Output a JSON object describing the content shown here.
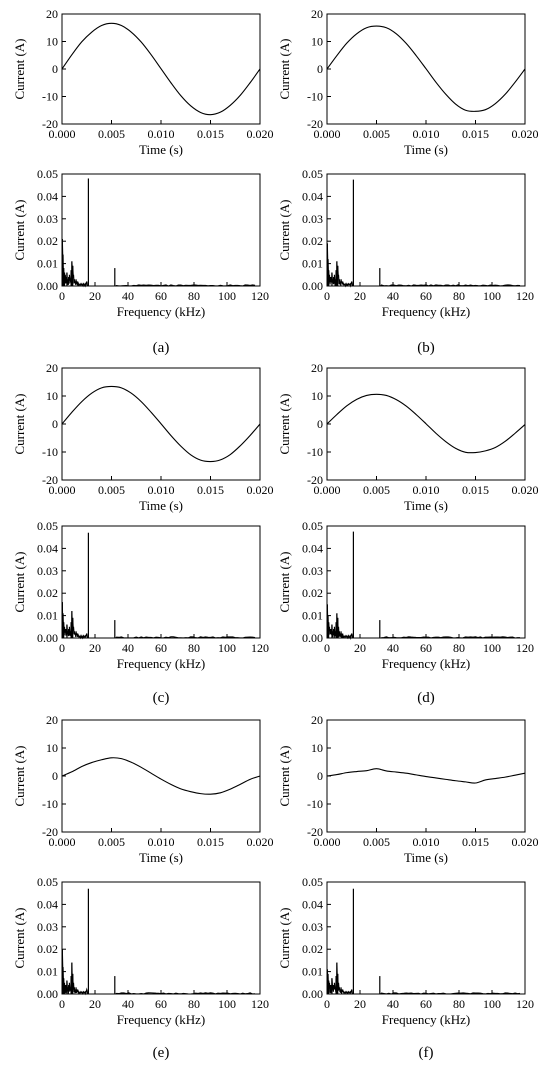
{
  "time_axis": {
    "xlabel": "Time (s)",
    "ylabel": "Current (A)",
    "xlim": [
      0,
      0.02
    ],
    "ylim": [
      -20,
      20
    ],
    "xticks": [
      "0.000",
      "0.005",
      "0.010",
      "0.015",
      "0.020"
    ],
    "yticks": [
      "20",
      "10",
      "0",
      "-10",
      "-20"
    ]
  },
  "freq_axis": {
    "xlabel": "Frequency (kHz)",
    "ylabel": "Current (A)",
    "xlim": [
      0,
      120
    ],
    "ylim": [
      0,
      0.05
    ],
    "xticks": [
      "0",
      "20",
      "40",
      "60",
      "80",
      "100",
      "120"
    ],
    "yticks": [
      "0.05",
      "0.04",
      "0.03",
      "0.02",
      "0.01",
      "0.00"
    ]
  },
  "panels": [
    {
      "label": "(a)"
    },
    {
      "label": "(b)"
    },
    {
      "label": "(c)"
    },
    {
      "label": "(d)"
    },
    {
      "label": "(e)"
    },
    {
      "label": "(f)"
    }
  ],
  "chart_data": [
    {
      "type": "line",
      "panel": "(a)",
      "plot": "time",
      "xlabel": "Time (s)",
      "ylabel": "Current (A)",
      "xlim": [
        0,
        0.02
      ],
      "ylim": [
        -20,
        20
      ],
      "x": [
        0,
        0.001,
        0.002,
        0.003,
        0.004,
        0.005,
        0.006,
        0.007,
        0.008,
        0.009,
        0.01,
        0.011,
        0.012,
        0.013,
        0.014,
        0.015,
        0.016,
        0.017,
        0.018,
        0.019,
        0.02
      ],
      "y": [
        0,
        5.2,
        9.9,
        13.4,
        15.8,
        16.6,
        15.8,
        13.4,
        9.8,
        5.2,
        0.1,
        -5.0,
        -9.7,
        -13.4,
        -15.8,
        -16.6,
        -15.7,
        -13.2,
        -9.6,
        -5.0,
        0
      ]
    },
    {
      "type": "bar",
      "panel": "(a)",
      "plot": "spectrum",
      "xlabel": "Frequency (kHz)",
      "ylabel": "Current (A)",
      "xlim": [
        0,
        120
      ],
      "ylim": [
        0,
        0.05
      ],
      "x": [
        0.2,
        0.6,
        1.0,
        1.5,
        2.0,
        2.5,
        3.0,
        3.5,
        4.0,
        4.5,
        5.0,
        5.5,
        6.0,
        6.5,
        7.0,
        7.5,
        8.0,
        8.5,
        9.0,
        9.5,
        10.0,
        11.0,
        12.0,
        13.0,
        14.0,
        15.0,
        16.0,
        32.0
      ],
      "y": [
        0.021,
        0.014,
        0.008,
        0.006,
        0.005,
        0.004,
        0.006,
        0.003,
        0.004,
        0.005,
        0.003,
        0.007,
        0.011,
        0.009,
        0.005,
        0.003,
        0.002,
        0.003,
        0.002,
        0.002,
        0.001,
        0.001,
        0.001,
        0.001,
        0.001,
        0.002,
        0.048,
        0.008
      ]
    },
    {
      "type": "line",
      "panel": "(b)",
      "plot": "time",
      "xlabel": "Time (s)",
      "ylabel": "Current (A)",
      "xlim": [
        0,
        0.02
      ],
      "ylim": [
        -20,
        20
      ],
      "x": [
        0,
        0.001,
        0.002,
        0.003,
        0.004,
        0.005,
        0.006,
        0.007,
        0.008,
        0.009,
        0.01,
        0.011,
        0.012,
        0.013,
        0.014,
        0.015,
        0.016,
        0.017,
        0.018,
        0.019,
        0.02
      ],
      "y": [
        0,
        4.9,
        9.4,
        12.8,
        15.0,
        15.6,
        15.0,
        12.8,
        9.3,
        4.9,
        0.1,
        -4.8,
        -9.2,
        -12.8,
        -15.0,
        -15.4,
        -14.8,
        -12.6,
        -9.2,
        -4.8,
        0
      ]
    },
    {
      "type": "bar",
      "panel": "(b)",
      "plot": "spectrum",
      "xlabel": "Frequency (kHz)",
      "ylabel": "Current (A)",
      "xlim": [
        0,
        120
      ],
      "ylim": [
        0,
        0.05
      ],
      "x": [
        0.2,
        0.6,
        1.0,
        1.5,
        2.0,
        2.5,
        3.0,
        3.5,
        4.0,
        4.5,
        5.0,
        5.5,
        6.0,
        6.5,
        7.0,
        7.5,
        8.0,
        8.5,
        9.0,
        9.5,
        10.0,
        11.0,
        12.0,
        13.0,
        14.0,
        15.0,
        16.0,
        32.0
      ],
      "y": [
        0.019,
        0.012,
        0.007,
        0.005,
        0.004,
        0.004,
        0.006,
        0.003,
        0.004,
        0.005,
        0.003,
        0.007,
        0.011,
        0.009,
        0.005,
        0.003,
        0.002,
        0.003,
        0.002,
        0.002,
        0.001,
        0.001,
        0.001,
        0.001,
        0.001,
        0.002,
        0.0475,
        0.008
      ]
    },
    {
      "type": "line",
      "panel": "(c)",
      "plot": "time",
      "xlabel": "Time (s)",
      "ylabel": "Current (A)",
      "xlim": [
        0,
        0.02
      ],
      "ylim": [
        -20,
        20
      ],
      "x": [
        0,
        0.001,
        0.002,
        0.003,
        0.004,
        0.005,
        0.006,
        0.007,
        0.008,
        0.009,
        0.01,
        0.011,
        0.012,
        0.013,
        0.014,
        0.015,
        0.016,
        0.017,
        0.018,
        0.019,
        0.02
      ],
      "y": [
        0,
        4.2,
        8.0,
        11.0,
        12.9,
        13.4,
        12.9,
        11.0,
        8.0,
        4.2,
        0.1,
        -4.1,
        -7.9,
        -11.0,
        -12.9,
        -13.4,
        -12.8,
        -10.9,
        -7.8,
        -4.1,
        0
      ]
    },
    {
      "type": "bar",
      "panel": "(c)",
      "plot": "spectrum",
      "xlabel": "Frequency (kHz)",
      "ylabel": "Current (A)",
      "xlim": [
        0,
        120
      ],
      "ylim": [
        0,
        0.05
      ],
      "x": [
        0.2,
        0.6,
        1.0,
        1.5,
        2.0,
        2.5,
        3.0,
        3.5,
        4.0,
        4.5,
        5.0,
        5.5,
        6.0,
        6.5,
        7.0,
        7.5,
        8.0,
        8.5,
        9.0,
        9.5,
        10.0,
        11.0,
        12.0,
        13.0,
        14.0,
        15.0,
        16.0,
        32.0
      ],
      "y": [
        0.016,
        0.011,
        0.007,
        0.005,
        0.004,
        0.004,
        0.006,
        0.003,
        0.004,
        0.005,
        0.003,
        0.007,
        0.012,
        0.009,
        0.005,
        0.003,
        0.002,
        0.003,
        0.002,
        0.002,
        0.001,
        0.001,
        0.001,
        0.001,
        0.001,
        0.002,
        0.047,
        0.008
      ]
    },
    {
      "type": "line",
      "panel": "(d)",
      "plot": "time",
      "xlabel": "Time (s)",
      "ylabel": "Current (A)",
      "xlim": [
        0,
        0.02
      ],
      "ylim": [
        -20,
        20
      ],
      "x": [
        0,
        0.001,
        0.002,
        0.003,
        0.004,
        0.005,
        0.006,
        0.007,
        0.008,
        0.009,
        0.01,
        0.011,
        0.012,
        0.013,
        0.014,
        0.015,
        0.016,
        0.017,
        0.018,
        0.019,
        0.02
      ],
      "y": [
        0,
        3.4,
        6.5,
        8.8,
        10.2,
        10.6,
        10.2,
        8.7,
        6.4,
        3.4,
        0.1,
        -3.3,
        -6.3,
        -8.7,
        -10.1,
        -10.2,
        -9.6,
        -8.4,
        -6.2,
        -3.3,
        -0.2
      ]
    },
    {
      "type": "bar",
      "panel": "(d)",
      "plot": "spectrum",
      "xlabel": "Frequency (kHz)",
      "ylabel": "Current (A)",
      "xlim": [
        0,
        120
      ],
      "ylim": [
        0,
        0.05
      ],
      "x": [
        0.2,
        0.6,
        1.0,
        1.5,
        2.0,
        2.5,
        3.0,
        3.5,
        4.0,
        4.5,
        5.0,
        5.5,
        6.0,
        6.5,
        7.0,
        7.5,
        8.0,
        8.5,
        9.0,
        9.5,
        10.0,
        11.0,
        12.0,
        13.0,
        14.0,
        15.0,
        16.0,
        32.0
      ],
      "y": [
        0.015,
        0.01,
        0.007,
        0.005,
        0.004,
        0.004,
        0.006,
        0.003,
        0.004,
        0.005,
        0.003,
        0.007,
        0.011,
        0.009,
        0.005,
        0.003,
        0.002,
        0.003,
        0.002,
        0.002,
        0.001,
        0.001,
        0.001,
        0.001,
        0.001,
        0.002,
        0.0475,
        0.008
      ]
    },
    {
      "type": "line",
      "panel": "(e)",
      "plot": "time",
      "xlabel": "Time (s)",
      "ylabel": "Current (A)",
      "xlim": [
        0,
        0.02
      ],
      "ylim": [
        -20,
        20
      ],
      "x": [
        0,
        0.001,
        0.002,
        0.003,
        0.004,
        0.005,
        0.006,
        0.007,
        0.008,
        0.009,
        0.01,
        0.011,
        0.012,
        0.013,
        0.014,
        0.015,
        0.016,
        0.017,
        0.018,
        0.019,
        0.02
      ],
      "y": [
        0,
        1.5,
        3.4,
        4.8,
        5.8,
        6.5,
        6.2,
        4.9,
        3.1,
        1.0,
        -1.1,
        -3.0,
        -4.6,
        -5.6,
        -6.3,
        -6.5,
        -6.0,
        -4.7,
        -3.0,
        -1.2,
        0
      ]
    },
    {
      "type": "bar",
      "panel": "(e)",
      "plot": "spectrum",
      "xlabel": "Frequency (kHz)",
      "ylabel": "Current (A)",
      "xlim": [
        0,
        120
      ],
      "ylim": [
        0,
        0.05
      ],
      "x": [
        0.2,
        0.6,
        1.0,
        1.5,
        2.0,
        2.5,
        3.0,
        3.5,
        4.0,
        4.5,
        5.0,
        5.5,
        6.0,
        6.5,
        7.0,
        7.5,
        8.0,
        8.5,
        9.0,
        9.5,
        10.0,
        11.0,
        12.0,
        13.0,
        14.0,
        15.0,
        16.0,
        32.0
      ],
      "y": [
        0.02,
        0.012,
        0.007,
        0.005,
        0.004,
        0.004,
        0.006,
        0.003,
        0.004,
        0.005,
        0.003,
        0.008,
        0.014,
        0.009,
        0.005,
        0.003,
        0.002,
        0.003,
        0.002,
        0.002,
        0.001,
        0.001,
        0.001,
        0.001,
        0.001,
        0.002,
        0.047,
        0.008
      ]
    },
    {
      "type": "line",
      "panel": "(f)",
      "plot": "time",
      "xlabel": "Time (s)",
      "ylabel": "Current (A)",
      "xlim": [
        0,
        0.02
      ],
      "ylim": [
        -20,
        20
      ],
      "x": [
        0,
        0.001,
        0.002,
        0.003,
        0.004,
        0.005,
        0.006,
        0.007,
        0.008,
        0.009,
        0.01,
        0.011,
        0.012,
        0.013,
        0.014,
        0.015,
        0.016,
        0.017,
        0.018,
        0.019,
        0.02
      ],
      "y": [
        0,
        0.5,
        1.2,
        1.6,
        1.9,
        2.6,
        1.8,
        1.4,
        1.0,
        0.4,
        -0.2,
        -0.7,
        -1.2,
        -1.7,
        -2.1,
        -2.5,
        -1.4,
        -0.9,
        -0.4,
        0.3,
        1.0
      ]
    },
    {
      "type": "bar",
      "panel": "(f)",
      "plot": "spectrum",
      "xlabel": "Frequency (kHz)",
      "ylabel": "Current (A)",
      "xlim": [
        0,
        120
      ],
      "ylim": [
        0,
        0.05
      ],
      "x": [
        0.2,
        0.6,
        1.0,
        1.5,
        2.0,
        2.5,
        3.0,
        3.5,
        4.0,
        4.5,
        5.0,
        5.5,
        6.0,
        6.5,
        7.0,
        7.5,
        8.0,
        8.5,
        9.0,
        9.5,
        10.0,
        11.0,
        12.0,
        13.0,
        14.0,
        15.0,
        16.0,
        32.0
      ],
      "y": [
        0.011,
        0.009,
        0.006,
        0.005,
        0.004,
        0.004,
        0.007,
        0.003,
        0.004,
        0.005,
        0.003,
        0.008,
        0.014,
        0.009,
        0.005,
        0.003,
        0.002,
        0.003,
        0.002,
        0.002,
        0.001,
        0.001,
        0.001,
        0.001,
        0.001,
        0.002,
        0.047,
        0.008
      ]
    }
  ]
}
